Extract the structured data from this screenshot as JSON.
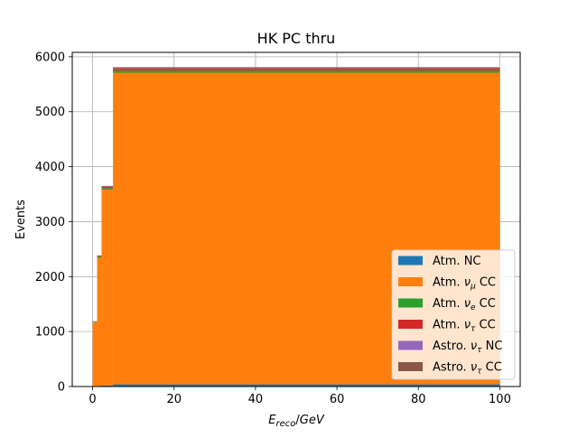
{
  "chart_data": {
    "type": "bar",
    "stacked": true,
    "histogram": true,
    "title": "HK PC thru",
    "xlabel": "E_reco/GeV",
    "ylabel": "Events",
    "xlim": [
      -5,
      105
    ],
    "ylim": [
      0,
      6080
    ],
    "grid": true,
    "legend_position": "lower-right",
    "x_ticks": [
      0,
      20,
      40,
      60,
      80,
      100
    ],
    "x_tick_labels": [
      "0",
      "20",
      "40",
      "60",
      "80",
      "100"
    ],
    "y_ticks": [
      0,
      1000,
      2000,
      3000,
      4000,
      5000,
      6000
    ],
    "y_tick_labels": [
      "0",
      "1000",
      "2000",
      "3000",
      "4000",
      "5000",
      "6000"
    ],
    "bin_edges": [
      0,
      1.1,
      2.2,
      5,
      100
    ],
    "series": [
      {
        "name": "Atm. NC",
        "label_main": "Atm. ",
        "label_greek": "",
        "label_sub": "",
        "label_tail": "NC",
        "color": "#1f77b4",
        "values": [
          5,
          10,
          20,
          40
        ]
      },
      {
        "name": "Atm. ν_μ CC",
        "label_main": "Atm. ",
        "label_greek": "ν",
        "label_sub": "μ",
        "label_tail": " CC",
        "color": "#ff7f0e",
        "values": [
          1165,
          2330,
          3560,
          5670
        ]
      },
      {
        "name": "Atm. ν_e CC",
        "label_main": "Atm. ",
        "label_greek": "ν",
        "label_sub": "e",
        "label_tail": " CC",
        "color": "#2ca02c",
        "values": [
          10,
          20,
          30,
          40
        ]
      },
      {
        "name": "Atm. ν_τ CC",
        "label_main": "Atm. ",
        "label_greek": "ν",
        "label_sub": "τ",
        "label_tail": " CC",
        "color": "#d62728",
        "values": [
          5,
          15,
          25,
          30
        ]
      },
      {
        "name": "Astro. ν_τ NC",
        "label_main": "Astro. ",
        "label_greek": "ν",
        "label_sub": "τ",
        "label_tail": " NC",
        "color": "#9467bd",
        "values": [
          1,
          2,
          3,
          5
        ]
      },
      {
        "name": "Astro. ν_τ CC",
        "label_main": "Astro. ",
        "label_greek": "ν",
        "label_sub": "τ",
        "label_tail": " CC",
        "color": "#8c564b",
        "values": [
          4,
          8,
          12,
          25
        ]
      }
    ]
  }
}
